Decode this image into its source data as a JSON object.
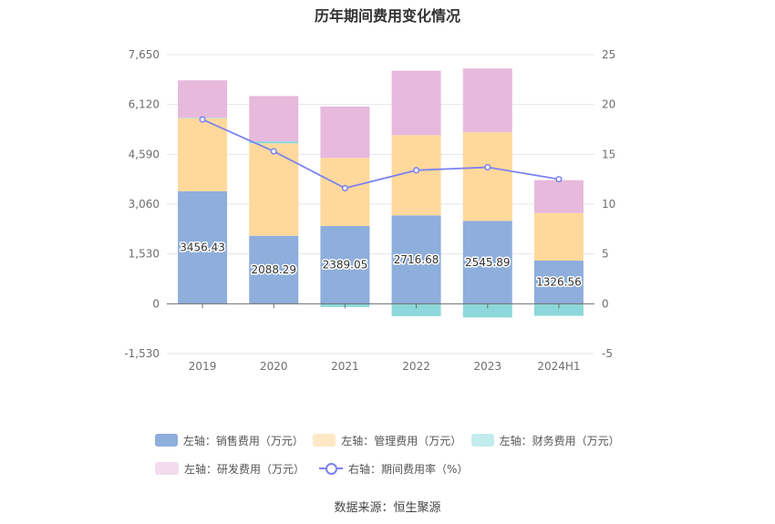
{
  "chart_data": {
    "type": "bar",
    "title": "历年期间费用变化情况",
    "categories": [
      "2019",
      "2020",
      "2021",
      "2022",
      "2023",
      "2024H1"
    ],
    "left_axis": {
      "ylim": [
        -1530,
        7650
      ],
      "ticks": [
        "7,650",
        "6,120",
        "4,590",
        "3,060",
        "1,530",
        "0",
        "-1,530"
      ],
      "tick_values": [
        7650,
        6120,
        4590,
        3060,
        1530,
        0,
        -1530
      ]
    },
    "right_axis": {
      "ylim": [
        -5,
        25
      ],
      "ticks": [
        "25",
        "20",
        "15",
        "10",
        "5",
        "0",
        "-5"
      ],
      "tick_values": [
        25,
        20,
        15,
        10,
        5,
        0,
        -5
      ]
    },
    "series": [
      {
        "name": "左轴：销售费用（万元）",
        "color": "#8eaedb",
        "type": "bar",
        "axis": "left",
        "values": [
          3456.43,
          2088.29,
          2389.05,
          2716.68,
          2545.89,
          1326.56
        ],
        "labels": [
          "3456.43",
          "2088.29",
          "2389.05",
          "2716.68",
          "2545.89",
          "1326.56"
        ]
      },
      {
        "name": "左轴：管理费用（万元）",
        "color": "#fed99b",
        "type": "bar",
        "axis": "left",
        "values": [
          2240,
          2840,
          2090,
          2460,
          2720,
          1460
        ]
      },
      {
        "name": "左轴：财务费用（万元）",
        "color": "#8cd8da",
        "type": "bar",
        "axis": "left",
        "values": [
          15,
          60,
          -100,
          -380,
          -420,
          -370
        ]
      },
      {
        "name": "左轴：研发费用（万元）",
        "color": "#e7b9dc",
        "type": "bar",
        "axis": "left",
        "values": [
          1150,
          1390,
          1580,
          1980,
          1960,
          1010
        ]
      },
      {
        "name": "右轴：期间费用率（%）",
        "color": "#7c83f0",
        "type": "line",
        "axis": "right",
        "values": [
          18.5,
          15.3,
          11.6,
          13.4,
          13.7,
          12.5
        ]
      }
    ]
  },
  "source": "数据来源：恒生聚源"
}
